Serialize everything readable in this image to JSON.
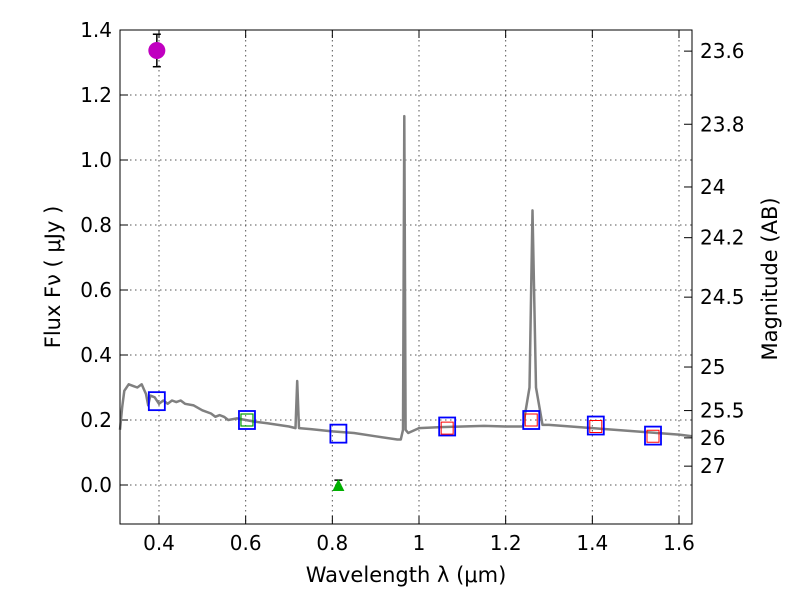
{
  "chart_data": {
    "type": "scatter",
    "xlabel": "Wavelength  λ (μm)",
    "ylabel": "Flux  Fν  ( μJy )",
    "y2label": "Magnitude (AB)",
    "xlim": [
      0.31,
      1.63
    ],
    "ylim": [
      -0.12,
      1.4
    ],
    "x_ticks": [
      0.4,
      0.6,
      0.8,
      1.0,
      1.2,
      1.4,
      1.6
    ],
    "x_tick_labels": [
      "0.4",
      "0.6",
      "0.8",
      "1",
      "1.2",
      "1.4",
      "1.6"
    ],
    "y_ticks": [
      0.0,
      0.2,
      0.4,
      0.6,
      0.8,
      1.0,
      1.2,
      1.4
    ],
    "y_tick_labels": [
      "0.0",
      "0.2",
      "0.4",
      "0.6",
      "0.8",
      "1.0",
      "1.2",
      "1.4"
    ],
    "mag_ticks": [
      {
        "label": "23.6",
        "flux": 1.335
      },
      {
        "label": "23.8",
        "flux": 1.11
      },
      {
        "label": "24",
        "flux": 0.917
      },
      {
        "label": "24.2",
        "flux": 0.761
      },
      {
        "label": "24.5",
        "flux": 0.578
      },
      {
        "label": "25",
        "flux": 0.363
      },
      {
        "label": "25.5",
        "flux": 0.229
      },
      {
        "label": "26",
        "flux": 0.145
      },
      {
        "label": "27",
        "flux": 0.058
      }
    ],
    "grid": true,
    "colors": {
      "template": "#808080",
      "photometry": "#0000ff",
      "model": "#ff0000",
      "magenta": "#c000c0",
      "triangle": "#00b000",
      "green_box": "#00a000"
    },
    "series": [
      {
        "name": "SED template",
        "style": "line",
        "points": [
          [
            0.31,
            0.17
          ],
          [
            0.315,
            0.24
          ],
          [
            0.32,
            0.29
          ],
          [
            0.33,
            0.31
          ],
          [
            0.34,
            0.305
          ],
          [
            0.35,
            0.3
          ],
          [
            0.36,
            0.31
          ],
          [
            0.365,
            0.295
          ],
          [
            0.37,
            0.28
          ],
          [
            0.375,
            0.245
          ],
          [
            0.38,
            0.275
          ],
          [
            0.39,
            0.27
          ],
          [
            0.4,
            0.25
          ],
          [
            0.41,
            0.26
          ],
          [
            0.42,
            0.25
          ],
          [
            0.43,
            0.26
          ],
          [
            0.44,
            0.255
          ],
          [
            0.45,
            0.26
          ],
          [
            0.46,
            0.25
          ],
          [
            0.48,
            0.245
          ],
          [
            0.5,
            0.23
          ],
          [
            0.52,
            0.22
          ],
          [
            0.53,
            0.21
          ],
          [
            0.54,
            0.215
          ],
          [
            0.55,
            0.21
          ],
          [
            0.56,
            0.2
          ],
          [
            0.58,
            0.205
          ],
          [
            0.6,
            0.2
          ],
          [
            0.62,
            0.195
          ],
          [
            0.65,
            0.19
          ],
          [
            0.7,
            0.18
          ],
          [
            0.715,
            0.175
          ],
          [
            0.719,
            0.32
          ],
          [
            0.723,
            0.175
          ],
          [
            0.75,
            0.172
          ],
          [
            0.8,
            0.165
          ],
          [
            0.85,
            0.16
          ],
          [
            0.9,
            0.15
          ],
          [
            0.95,
            0.14
          ],
          [
            0.958,
            0.14
          ],
          [
            0.963,
            0.17
          ],
          [
            0.966,
            1.135
          ],
          [
            0.969,
            0.17
          ],
          [
            0.975,
            0.16
          ],
          [
            1.0,
            0.175
          ],
          [
            1.05,
            0.178
          ],
          [
            1.1,
            0.18
          ],
          [
            1.15,
            0.182
          ],
          [
            1.2,
            0.18
          ],
          [
            1.24,
            0.18
          ],
          [
            1.255,
            0.3
          ],
          [
            1.262,
            0.845
          ],
          [
            1.27,
            0.3
          ],
          [
            1.285,
            0.185
          ],
          [
            1.3,
            0.185
          ],
          [
            1.35,
            0.18
          ],
          [
            1.4,
            0.175
          ],
          [
            1.45,
            0.17
          ],
          [
            1.5,
            0.165
          ],
          [
            1.55,
            0.16
          ],
          [
            1.6,
            0.155
          ],
          [
            1.63,
            0.15
          ]
        ]
      },
      {
        "name": "photometry",
        "style": "open-square",
        "points": [
          [
            0.395,
            0.258
          ],
          [
            0.603,
            0.2
          ],
          [
            0.814,
            0.158
          ],
          [
            1.065,
            0.18
          ],
          [
            1.259,
            0.2
          ],
          [
            1.408,
            0.183
          ],
          [
            1.54,
            0.152
          ]
        ]
      },
      {
        "name": "model photometry",
        "style": "small-square",
        "points": [
          [
            0.603,
            0.2
          ],
          [
            1.065,
            0.175
          ],
          [
            1.259,
            0.2
          ],
          [
            1.408,
            0.18
          ],
          [
            1.54,
            0.15
          ]
        ]
      },
      {
        "name": "blue-band point",
        "style": "filled-circle",
        "points": [
          [
            0.395,
            1.337
          ]
        ],
        "yerr": 0.05
      },
      {
        "name": "non-detection",
        "style": "filled-triangle",
        "points": [
          [
            0.814,
            0.0
          ]
        ],
        "yerr": 0.015
      }
    ]
  }
}
